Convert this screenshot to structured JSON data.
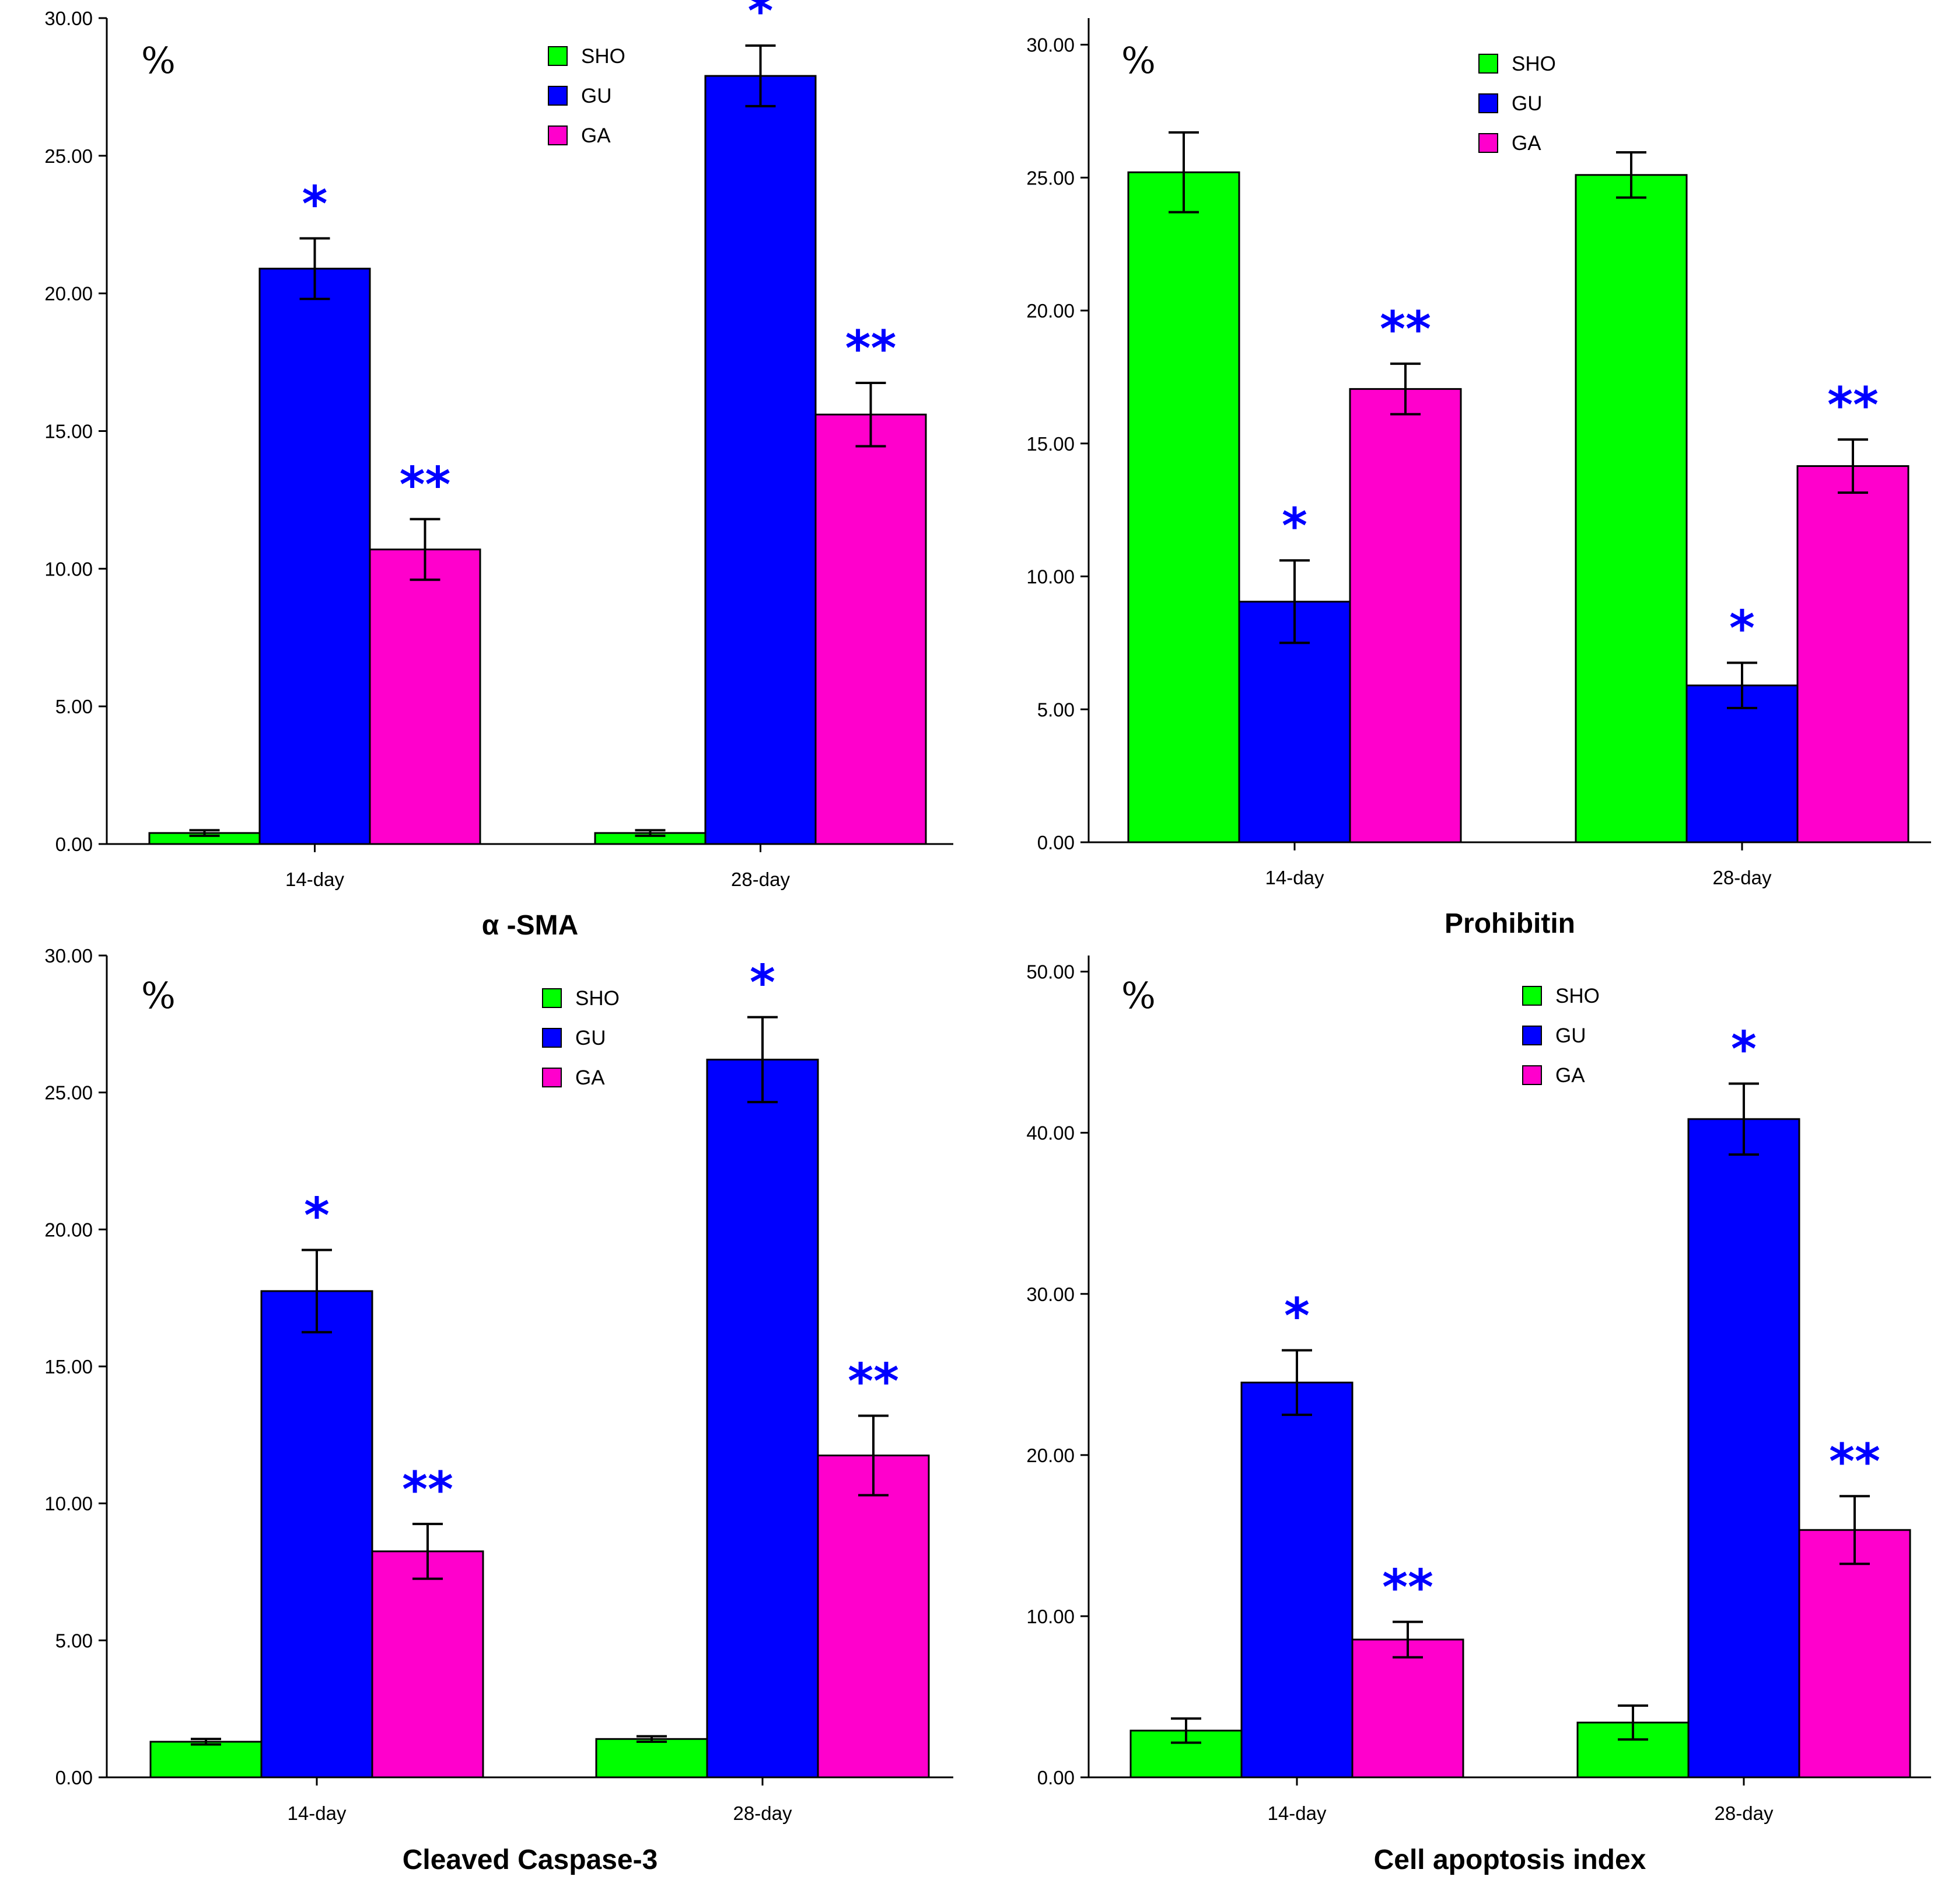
{
  "chart_data": [
    {
      "type": "bar",
      "title": "α -SMA",
      "ylabel": "%",
      "categories": [
        "14-day",
        "28-day"
      ],
      "ylim": [
        0,
        30
      ],
      "yticks": [
        "0.00",
        "5.00",
        "10.00",
        "15.00",
        "20.00",
        "25.00",
        "30.00"
      ],
      "ytick_values": [
        0,
        5,
        10,
        15,
        20,
        25,
        30
      ],
      "legend_position": "top-right",
      "series": [
        {
          "name": "SHO",
          "color": "#00ff00",
          "values": [
            0.4,
            0.4
          ],
          "errors": [
            0.1,
            0.1
          ],
          "marks": [
            "",
            ""
          ]
        },
        {
          "name": "GU",
          "color": "#0000ff",
          "values": [
            20.9,
            27.9
          ],
          "errors": [
            1.1,
            1.1
          ],
          "marks": [
            "*",
            "*"
          ]
        },
        {
          "name": "GA",
          "color": "#ff00cc",
          "values": [
            10.7,
            15.6
          ],
          "errors": [
            1.1,
            1.15
          ],
          "marks": [
            "**",
            "**"
          ]
        }
      ]
    },
    {
      "type": "bar",
      "title": "Prohibitin",
      "ylabel": "%",
      "categories": [
        "14-day",
        "28-day"
      ],
      "ylim": [
        0,
        31
      ],
      "yticks": [
        "0.00",
        "5.00",
        "10.00",
        "15.00",
        "20.00",
        "25.00",
        "30.00"
      ],
      "ytick_values": [
        0,
        5,
        10,
        15,
        20,
        25,
        30
      ],
      "legend_position": "top-right",
      "series": [
        {
          "name": "SHO",
          "color": "#00ff00",
          "values": [
            25.2,
            25.1
          ],
          "errors": [
            1.5,
            0.85
          ],
          "marks": [
            "",
            ""
          ]
        },
        {
          "name": "GU",
          "color": "#0000ff",
          "values": [
            9.05,
            5.9
          ],
          "errors": [
            1.55,
            0.85
          ],
          "marks": [
            "*",
            "*"
          ]
        },
        {
          "name": "GA",
          "color": "#ff00cc",
          "values": [
            17.05,
            14.15
          ],
          "errors": [
            0.95,
            1.0
          ],
          "marks": [
            "**",
            "**"
          ]
        }
      ]
    },
    {
      "type": "bar",
      "title": "Cleaved Caspase-3",
      "ylabel": "%",
      "categories": [
        "14-day",
        "28-day"
      ],
      "ylim": [
        0,
        30
      ],
      "yticks": [
        "0.00",
        "5.00",
        "10.00",
        "15.00",
        "20.00",
        "25.00",
        "30.00"
      ],
      "ytick_values": [
        0,
        5,
        10,
        15,
        20,
        25,
        30
      ],
      "legend_position": "top-right",
      "series": [
        {
          "name": "SHO",
          "color": "#00ff00",
          "values": [
            1.3,
            1.4
          ],
          "errors": [
            0.1,
            0.1
          ],
          "marks": [
            "",
            ""
          ]
        },
        {
          "name": "GU",
          "color": "#0000ff",
          "values": [
            17.75,
            26.2
          ],
          "errors": [
            1.5,
            1.55
          ],
          "marks": [
            "*",
            "*"
          ]
        },
        {
          "name": "GA",
          "color": "#ff00cc",
          "values": [
            8.25,
            11.75
          ],
          "errors": [
            1.0,
            1.45
          ],
          "marks": [
            "**",
            "**"
          ]
        }
      ]
    },
    {
      "type": "bar",
      "title": "Cell apoptosis index",
      "ylabel": "%",
      "categories": [
        "14-day",
        "28-day"
      ],
      "ylim": [
        0,
        51
      ],
      "yticks": [
        "0.00",
        "10.00",
        "20.00",
        "30.00",
        "40.00",
        "50.00"
      ],
      "ytick_values": [
        0,
        10,
        20,
        30,
        40,
        50
      ],
      "legend_position": "top-right",
      "series": [
        {
          "name": "SHO",
          "color": "#00ff00",
          "values": [
            2.9,
            3.4
          ],
          "errors": [
            0.75,
            1.05
          ],
          "marks": [
            "",
            ""
          ]
        },
        {
          "name": "GU",
          "color": "#0000ff",
          "values": [
            24.5,
            40.85
          ],
          "errors": [
            2.0,
            2.2
          ],
          "marks": [
            "*",
            "*"
          ]
        },
        {
          "name": "GA",
          "color": "#ff00cc",
          "values": [
            8.55,
            15.35
          ],
          "errors": [
            1.1,
            2.1
          ],
          "marks": [
            "**",
            "**"
          ]
        }
      ]
    }
  ],
  "colors": {
    "significance": "#0000ff",
    "axis": "#000000"
  }
}
